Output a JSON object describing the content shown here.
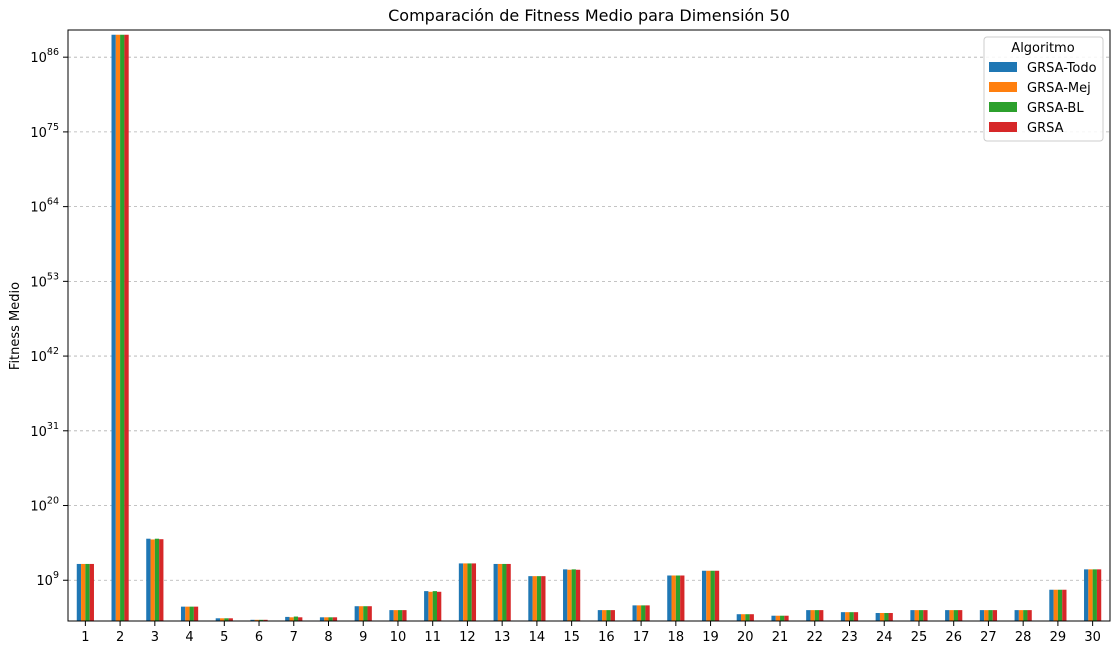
{
  "chart_data": {
    "type": "bar",
    "title": "Comparación de Fitness Medio para Dimensión 50",
    "xlabel": "",
    "ylabel": "Fitness Medio",
    "yscale": "log",
    "ylim": [
      1000,
      1e+90
    ],
    "yticks": [
      {
        "value": 1000000000.0,
        "base": "10",
        "exp": "9"
      },
      {
        "value": 1e+20,
        "base": "10",
        "exp": "20"
      },
      {
        "value": 1e+31,
        "base": "10",
        "exp": "31"
      },
      {
        "value": 1e+42,
        "base": "10",
        "exp": "42"
      },
      {
        "value": 1e+53,
        "base": "10",
        "exp": "53"
      },
      {
        "value": 1e+64,
        "base": "10",
        "exp": "64"
      },
      {
        "value": 1e+75,
        "base": "10",
        "exp": "75"
      },
      {
        "value": 1e+86,
        "base": "10",
        "exp": "86"
      }
    ],
    "grid": "y-dashed",
    "legend": {
      "title": "Algoritmo",
      "placement": "top-right"
    },
    "categories": [
      "1",
      "2",
      "3",
      "4",
      "5",
      "6",
      "7",
      "8",
      "9",
      "10",
      "11",
      "12",
      "13",
      "14",
      "15",
      "16",
      "17",
      "18",
      "19",
      "20",
      "21",
      "22",
      "23",
      "24",
      "25",
      "26",
      "27",
      "28",
      "29",
      "30"
    ],
    "series": [
      {
        "name": "GRSA-Todo",
        "color": "#1f77b4",
        "values": [
          250000000000.0,
          2e+89,
          1300000000000000.0,
          130000.0,
          2500,
          1500,
          4000,
          3500,
          150000.0,
          40000.0,
          25000000.0,
          300000000000.0,
          250000000000.0,
          4000000000.0,
          40000000000.0,
          40000.0,
          200000.0,
          5000000000.0,
          25000000000.0,
          10000.0,
          6000,
          40000.0,
          20000.0,
          15000.0,
          40000.0,
          40000.0,
          40000.0,
          40000.0,
          40000000.0,
          40000000000.0
        ]
      },
      {
        "name": "GRSA-Mej",
        "color": "#ff7f0e",
        "values": [
          250000000000.0,
          2e+89,
          1000000000000000.0,
          130000.0,
          2500,
          1500,
          3500,
          3500,
          150000.0,
          40000.0,
          20000000.0,
          300000000000.0,
          250000000000.0,
          4000000000.0,
          35000000000.0,
          40000.0,
          200000.0,
          5000000000.0,
          25000000000.0,
          10000.0,
          6000,
          40000.0,
          20000.0,
          15000.0,
          40000.0,
          40000.0,
          40000.0,
          40000.0,
          40000000.0,
          40000000000.0
        ]
      },
      {
        "name": "GRSA-BL",
        "color": "#2ca02c",
        "values": [
          250000000000.0,
          2e+89,
          1300000000000000.0,
          130000.0,
          2500,
          1500,
          4500,
          3500,
          150000.0,
          40000.0,
          25000000.0,
          300000000000.0,
          250000000000.0,
          4000000000.0,
          40000000000.0,
          40000.0,
          200000.0,
          5000000000.0,
          25000000000.0,
          10000.0,
          6000,
          40000.0,
          20000.0,
          15000.0,
          40000.0,
          40000.0,
          40000.0,
          40000.0,
          40000000.0,
          40000000000.0
        ]
      },
      {
        "name": "GRSA",
        "color": "#d62728",
        "values": [
          250000000000.0,
          2e+89,
          1100000000000000.0,
          130000.0,
          2500,
          1500,
          3500,
          3500,
          150000.0,
          40000.0,
          20000000.0,
          300000000000.0,
          250000000000.0,
          4000000000.0,
          35000000000.0,
          40000.0,
          200000.0,
          5000000000.0,
          25000000000.0,
          10000.0,
          6000,
          40000.0,
          20000.0,
          15000.0,
          40000.0,
          40000.0,
          40000.0,
          40000.0,
          40000000.0,
          40000000000.0
        ]
      }
    ]
  }
}
